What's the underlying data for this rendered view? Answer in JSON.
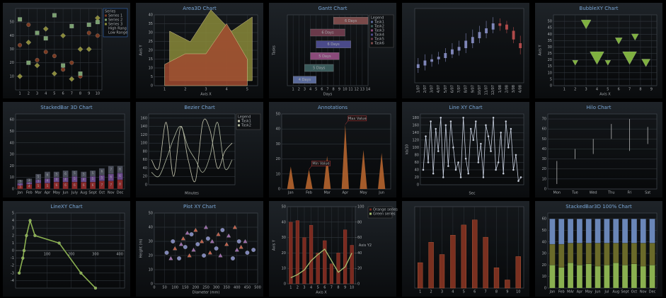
{
  "chart_data": [
    {
      "type": "scatter",
      "xlim": [
        0.5,
        10.5
      ],
      "xticks": [
        1,
        2,
        3,
        4,
        5,
        6,
        7,
        8,
        9,
        10
      ],
      "ylim": [
        0,
        60
      ],
      "yticks": [
        10,
        20,
        30,
        40,
        50
      ],
      "legend_title": "Series",
      "legend_extra": [
        "High Rang",
        "Low Range"
      ],
      "series": [
        {
          "name": "Series 1",
          "marker": "circle",
          "color": "#7a3b22",
          "x": [
            1,
            2,
            3,
            4,
            5,
            6,
            7,
            8,
            9,
            10
          ],
          "values": [
            33,
            48,
            22,
            28,
            25,
            15,
            20,
            10,
            42,
            40
          ]
        },
        {
          "name": "Series 2",
          "marker": "square",
          "color": "#7aa070",
          "x": [
            1,
            2,
            3,
            4,
            5,
            6,
            7,
            8,
            9,
            10
          ],
          "values": [
            52,
            20,
            42,
            38,
            55,
            18,
            47,
            12,
            48,
            50
          ]
        },
        {
          "name": "Series 3",
          "marker": "diamond",
          "color": "#8a8a3a",
          "x": [
            1,
            2,
            3,
            4,
            5,
            6,
            7,
            8,
            9,
            10
          ],
          "values": [
            10,
            35,
            18,
            45,
            12,
            40,
            8,
            30,
            30,
            53
          ]
        }
      ]
    },
    {
      "type": "area3d",
      "title": "Area3D Chart",
      "xlabel": "Axis X",
      "ylabel": "Axis Y",
      "xlim": [
        0.5,
        5.5
      ],
      "xticks": [
        1,
        2,
        3,
        4,
        5
      ],
      "ylim": [
        0,
        40
      ],
      "yticks": [
        0,
        5,
        10,
        15,
        20,
        25,
        30,
        35,
        40
      ],
      "series": [
        {
          "color": "#8a8a3a",
          "x": [
            1,
            2,
            3,
            4,
            5
          ],
          "values": [
            28,
            22,
            40,
            28,
            36
          ]
        },
        {
          "color": "#a04a30",
          "x": [
            1,
            2,
            3,
            4,
            5
          ],
          "values": [
            12,
            18,
            18,
            35,
            15
          ]
        }
      ]
    },
    {
      "type": "gantt",
      "title": "Gantt Chart",
      "xlabel": "Days",
      "ylabel": "Tasks",
      "xlim": [
        0,
        14
      ],
      "xticks": [
        1,
        2,
        3,
        4,
        5,
        6,
        7,
        8,
        9,
        10,
        11,
        12,
        13,
        14
      ],
      "legend_title": "Legend",
      "categories": [
        "Task1",
        "Task2",
        "Task3",
        "Task4",
        "Task5",
        "Task6"
      ],
      "colors": [
        "#5a6a9a",
        "#3a5a5a",
        "#8a4a7a",
        "#4a4a8a",
        "#6a3a4a",
        "#7a4a4a"
      ],
      "starts": [
        1,
        3,
        4,
        5,
        4,
        8
      ],
      "values": [
        4,
        5,
        5,
        6,
        6,
        6
      ],
      "value_labels": [
        "4 Days",
        "5 Days",
        "5 Days",
        "6 Days",
        "6 Days",
        "6 Days"
      ]
    },
    {
      "type": "candlestick",
      "ylim": [
        10,
        70
      ],
      "up_color": "#7f86b8",
      "down_color": "#b04a4a",
      "categories": [
        "1/07",
        "2/07",
        "3/07",
        "4/07",
        "5/07",
        "6/07",
        "7/07",
        "8/07",
        "9/07",
        "10/07",
        "11/07",
        "12/07",
        "1/08",
        "2/08",
        "3/08",
        "4/08"
      ],
      "open": [
        22,
        24,
        27,
        29,
        30,
        33,
        36,
        38,
        42,
        46,
        50,
        53,
        58,
        57,
        52,
        42
      ],
      "close": [
        25,
        28,
        29,
        31,
        34,
        37,
        39,
        44,
        47,
        51,
        54,
        58,
        56,
        53,
        45,
        38
      ],
      "high": [
        30,
        33,
        33,
        35,
        38,
        42,
        44,
        50,
        53,
        56,
        60,
        63,
        62,
        60,
        55,
        48
      ],
      "low": [
        18,
        20,
        23,
        25,
        27,
        30,
        32,
        34,
        38,
        42,
        46,
        50,
        52,
        50,
        42,
        33
      ]
    },
    {
      "type": "bubble",
      "title": "BubbleXY Chart",
      "xlabel": "Axis X",
      "ylabel": "Axis Y",
      "xlim": [
        0,
        9.5
      ],
      "xticks": [
        1,
        2,
        3,
        4,
        5,
        6,
        7,
        8,
        9
      ],
      "ylim": [
        0,
        55
      ],
      "yticks": [
        0,
        5,
        10,
        15,
        20,
        25,
        30,
        35,
        40,
        45,
        50
      ],
      "series": [
        {
          "marker": "triangle-down",
          "color": "#7fb040",
          "x": [
            2,
            3,
            4,
            5,
            6,
            7,
            7.5,
            8.5
          ],
          "values": [
            18,
            48,
            22,
            18,
            35,
            22,
            38,
            18
          ],
          "size": [
            4,
            7,
            10,
            4,
            5,
            10,
            5,
            6
          ]
        }
      ]
    },
    {
      "type": "stackedbar",
      "title": "StackedBar 3D Chart",
      "data_labels": true,
      "categories": [
        "Jan",
        "Feb",
        "Mar",
        "Apr",
        "May",
        "Jun",
        "July",
        "Aug",
        "Sept",
        "Oct",
        "Nov",
        "Dec"
      ],
      "ylim": [
        0,
        65
      ],
      "yticks": [
        0,
        10,
        20,
        30,
        40,
        50,
        60
      ],
      "series": [
        {
          "color": "#8a2a2a",
          "values": [
            3,
            4,
            5,
            5,
            6,
            6,
            6,
            6,
            6,
            7,
            7,
            8
          ]
        },
        {
          "color": "#6a4a8a",
          "values": [
            2,
            2,
            3,
            4,
            4,
            4,
            5,
            4,
            5,
            5,
            6,
            6
          ]
        },
        {
          "color": "#4a4e5a",
          "values": [
            3,
            3,
            5,
            6,
            5,
            6,
            5,
            5,
            5,
            6,
            7,
            6
          ]
        }
      ]
    },
    {
      "type": "line",
      "title": "Bezier Chart",
      "xlabel": "Minutes",
      "smooth": true,
      "ylim": [
        0,
        170
      ],
      "yticks": [
        0,
        20,
        40,
        60,
        80,
        100,
        120,
        140,
        160
      ],
      "legend_title": "Legend",
      "series": [
        {
          "name": "Task1",
          "color": "#c8c8b0",
          "values": [
            60,
            40,
            150,
            20,
            140,
            60,
            10,
            150,
            130,
            40,
            80,
            100
          ]
        },
        {
          "name": "Task2",
          "color": "#b0b8a0",
          "values": [
            30,
            20,
            60,
            110,
            140,
            90,
            60,
            30,
            70,
            150,
            40,
            60
          ]
        }
      ]
    },
    {
      "type": "peak",
      "title": "Annotations",
      "color": "#c06a30",
      "categories": [
        "Jan",
        "Feb",
        "Mar",
        "Apr",
        "May",
        "Jun"
      ],
      "values": [
        15,
        13,
        22,
        43,
        26,
        24
      ],
      "ylim": [
        0,
        50
      ],
      "yticks": [
        0,
        10,
        20,
        30,
        40,
        50
      ],
      "annotations": [
        {
          "label": "Min Value",
          "category": "Feb"
        },
        {
          "label": "Max Value",
          "category": "Apr"
        }
      ]
    },
    {
      "type": "line",
      "title": "Line XY Chart",
      "xlabel": "Sec",
      "ylabel": "kb/10",
      "ylim": [
        0,
        190
      ],
      "yticks": [
        0,
        20,
        40,
        60,
        80,
        100,
        120,
        140,
        160,
        180
      ],
      "series": [
        {
          "color": "#c8d0e0",
          "marker": "circle",
          "values": [
            40,
            130,
            60,
            170,
            30,
            150,
            90,
            180,
            20,
            160,
            50,
            170,
            100,
            40,
            60,
            20,
            180,
            70,
            30,
            150,
            120,
            170,
            60,
            110,
            20,
            160,
            130,
            90,
            180,
            40,
            60,
            140,
            30,
            170,
            100,
            150,
            40,
            80,
            10,
            20
          ]
        }
      ]
    },
    {
      "type": "hilo",
      "title": "Hilo Chart",
      "color": "#c8c8c8",
      "categories": [
        "Mon",
        "Tue",
        "Wed",
        "Thu",
        "Fri",
        "Sat"
      ],
      "ylim": [
        0,
        75
      ],
      "yticks": [
        0,
        10,
        20,
        30,
        40,
        50,
        60,
        70
      ],
      "high": [
        28,
        40,
        50,
        65,
        70,
        62
      ],
      "low": [
        5,
        30,
        35,
        50,
        38,
        45
      ]
    },
    {
      "type": "line",
      "title": "LineXY Chart",
      "x_axis_at_zero": true,
      "xlim": [
        -30,
        420
      ],
      "xticks": [
        100,
        200,
        300,
        400
      ],
      "ylim": [
        -5,
        5
      ],
      "yticks": [
        -4,
        -3,
        -2,
        -1,
        0,
        1,
        2,
        3,
        4,
        5
      ],
      "series": [
        {
          "color": "#8ab050",
          "marker": "circle",
          "width": 1.6,
          "x": [
            -15,
            0,
            5,
            15,
            30,
            50,
            150,
            240,
            300
          ],
          "values": [
            -3,
            -1,
            0,
            2,
            4,
            2,
            1,
            -3,
            -5
          ]
        }
      ]
    },
    {
      "type": "scatter",
      "title": "Plot XY Chart",
      "xlabel": "Diameter (mm)",
      "ylabel": "Height (m)",
      "xlim": [
        0,
        500
      ],
      "xticks": [
        0,
        50,
        100,
        150,
        200,
        250,
        300,
        350,
        400,
        450,
        500
      ],
      "ylim": [
        0,
        50
      ],
      "yticks": [
        0,
        10,
        20,
        30,
        40,
        50
      ],
      "series": [
        {
          "marker": "circle",
          "color": "#7f86b8",
          "x": [
            60,
            90,
            120,
            150,
            180,
            210,
            240,
            260,
            300,
            330,
            380,
            410,
            450,
            480
          ],
          "values": [
            22,
            30,
            18,
            26,
            35,
            28,
            20,
            32,
            25,
            38,
            18,
            30,
            22,
            24
          ]
        },
        {
          "marker": "triangle",
          "color": "#c0604a",
          "x": [
            100,
            140,
            170,
            200,
            230,
            270,
            310,
            350,
            390,
            420
          ],
          "values": [
            25,
            32,
            20,
            38,
            30,
            22,
            35,
            28,
            40,
            26
          ]
        },
        {
          "marker": "triangle",
          "color": "#9a6aa8",
          "x": [
            80,
            130,
            160,
            190,
            250,
            280,
            320,
            360,
            400,
            440
          ],
          "values": [
            18,
            28,
            36,
            24,
            40,
            30,
            20,
            34,
            24,
            30
          ]
        }
      ]
    },
    {
      "type": "combo",
      "xlabel": "Axis X",
      "ylabel": "Axis Y",
      "y2label": "Axis Y2",
      "xlim": [
        0.5,
        10.5
      ],
      "xticks": [
        1,
        2,
        3,
        4,
        5,
        6,
        7,
        8,
        9,
        10
      ],
      "ylim": [
        0,
        50
      ],
      "yticks": [
        0,
        10,
        20,
        30,
        40,
        50
      ],
      "y2lim": [
        0,
        100
      ],
      "y2ticks": [
        0,
        20,
        40,
        60,
        80,
        100
      ],
      "x": [
        1,
        2,
        3,
        4,
        5,
        6,
        7,
        8,
        9,
        10
      ],
      "series": [
        {
          "name": "Orange series",
          "color": "#7a2a20",
          "values": [
            40,
            41,
            30,
            38,
            20,
            28,
            13,
            20,
            35,
            25
          ]
        },
        {
          "name": "Green series",
          "color": "#a8c070",
          "axis": "y2",
          "values": [
            8,
            12,
            18,
            30,
            38,
            45,
            30,
            15,
            22,
            40
          ]
        }
      ]
    },
    {
      "type": "bar",
      "color": "#7a3020",
      "x": [
        1,
        2,
        3,
        4,
        5,
        6,
        7,
        8,
        9,
        10
      ],
      "xlim": [
        0.5,
        10.5
      ],
      "xticks": [
        1,
        2,
        3,
        4,
        5,
        6,
        7,
        8,
        9,
        10
      ],
      "ylim": [
        0,
        80
      ],
      "values": [
        25,
        45,
        33,
        52,
        62,
        67,
        50,
        20,
        8,
        31
      ]
    },
    {
      "type": "stackedbar",
      "title": "StackedBar3D 100% Chart",
      "categories": [
        "Jan",
        "Feb",
        "MAr",
        "Apr",
        "May",
        "Jun",
        "Jul",
        "Aug",
        "Sept",
        "Oct",
        "Nov",
        "Dec"
      ],
      "ylim": [
        0,
        65
      ],
      "yticks": [
        0,
        10,
        20,
        30,
        40,
        50,
        60
      ],
      "series": [
        {
          "color": "#8ab050",
          "values": [
            20,
            18,
            22,
            20,
            21,
            19,
            20,
            22,
            20,
            21,
            19,
            20
          ]
        },
        {
          "color": "#6a6a2a",
          "values": [
            18,
            20,
            17,
            19,
            18,
            20,
            19,
            17,
            19,
            18,
            20,
            19
          ]
        },
        {
          "color": "#6a86b8",
          "values": [
            22,
            22,
            21,
            21,
            21,
            21,
            21,
            21,
            21,
            21,
            21,
            21
          ]
        }
      ]
    }
  ]
}
